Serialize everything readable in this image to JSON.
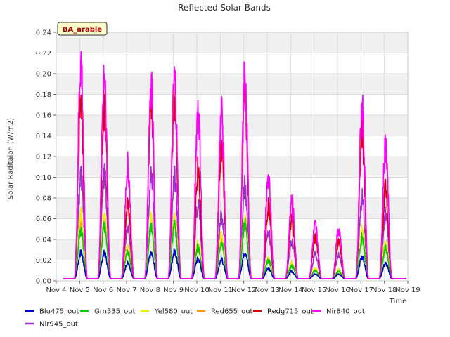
{
  "chart_data": {
    "type": "line",
    "title": "Reflected Solar Bands",
    "xlabel": "Time",
    "ylabel": "Solar Raditaion (W/m2)",
    "badge": "BA_arable",
    "ylim": [
      0,
      0.24
    ],
    "xlim": [
      4,
      19
    ],
    "yticks": [
      0.0,
      0.02,
      0.04,
      0.06,
      0.08,
      0.1,
      0.12,
      0.14,
      0.16,
      0.18,
      0.2,
      0.22,
      0.24
    ],
    "ytick_labels": [
      "0.00",
      "0.02",
      "0.04",
      "0.06",
      "0.08",
      "0.10",
      "0.12",
      "0.14",
      "0.16",
      "0.18",
      "0.20",
      "0.22",
      "0.24"
    ],
    "xticks": [
      4,
      5,
      6,
      7,
      8,
      9,
      10,
      11,
      12,
      13,
      14,
      15,
      16,
      17,
      18,
      19
    ],
    "xtick_labels": [
      "Nov 4",
      "Nov 5",
      "Nov 6",
      "Nov 7",
      "Nov 8",
      "Nov 9",
      "Nov 10",
      "Nov 11",
      "Nov 12",
      "Nov 13",
      "Nov 14",
      "Nov 15",
      "Nov 16",
      "Nov 17",
      "Nov 18",
      "Nov 19"
    ],
    "grid": true,
    "legend_position": "bottom",
    "baseline": 0.002,
    "day_centers": [
      5.05,
      6.05,
      7.05,
      8.05,
      9.05,
      10.05,
      11.05,
      12.05,
      13.05,
      14.05,
      15.05,
      16.05,
      17.05,
      18.05
    ],
    "series": [
      {
        "name": "Blu475_out",
        "color": "#0000cc",
        "peaks": [
          0.029,
          0.028,
          0.017,
          0.028,
          0.03,
          0.022,
          0.021,
          0.03,
          0.011,
          0.008,
          0.005,
          0.005,
          0.024,
          0.017
        ]
      },
      {
        "name": "Grn535_out",
        "color": "#00cc00",
        "peaks": [
          0.055,
          0.058,
          0.03,
          0.057,
          0.058,
          0.035,
          0.04,
          0.06,
          0.02,
          0.014,
          0.009,
          0.008,
          0.045,
          0.033
        ]
      },
      {
        "name": "Yel580_out",
        "color": "#eeee00",
        "peaks": [
          0.072,
          0.068,
          0.035,
          0.064,
          0.066,
          0.038,
          0.047,
          0.066,
          0.022,
          0.018,
          0.011,
          0.01,
          0.055,
          0.038
        ]
      },
      {
        "name": "Red655_out",
        "color": "#ff9900",
        "peaks": [
          0.066,
          0.065,
          0.033,
          0.06,
          0.063,
          0.036,
          0.044,
          0.063,
          0.02,
          0.016,
          0.01,
          0.009,
          0.05,
          0.035
        ]
      },
      {
        "name": "Redg715_out",
        "color": "#dd0000",
        "peaks": [
          0.2,
          0.19,
          0.082,
          0.197,
          0.2,
          0.12,
          0.14,
          0.2,
          0.08,
          0.065,
          0.045,
          0.04,
          0.16,
          0.1
        ]
      },
      {
        "name": "Nir840_out",
        "color": "#ff00ff",
        "peaks": [
          0.236,
          0.23,
          0.123,
          0.214,
          0.215,
          0.184,
          0.179,
          0.219,
          0.108,
          0.086,
          0.058,
          0.056,
          0.187,
          0.144
        ]
      },
      {
        "name": "Nir945_out",
        "color": "#9933cc",
        "peaks": [
          0.111,
          0.115,
          0.056,
          0.115,
          0.111,
          0.083,
          0.07,
          0.101,
          0.051,
          0.041,
          0.027,
          0.026,
          0.089,
          0.071
        ]
      }
    ]
  }
}
